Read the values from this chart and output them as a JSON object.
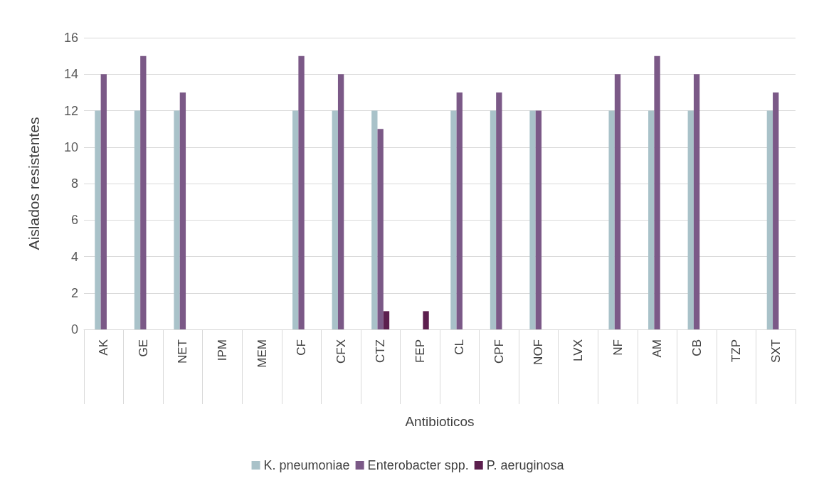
{
  "chart_data": {
    "type": "bar",
    "xlabel": "Antibioticos",
    "ylabel": "Aislados resistentes",
    "categories": [
      "AK",
      "GE",
      "NET",
      "IPM",
      "MEM",
      "CF",
      "CFX",
      "CTZ",
      "FEP",
      "CL",
      "CPF",
      "NOF",
      "LVX",
      "NF",
      "AM",
      "CB",
      "TZP",
      "SXT"
    ],
    "series": [
      {
        "name": "K. pneumoniae",
        "color": "#a9c2c9",
        "values": [
          12,
          12,
          12,
          0,
          0,
          12,
          12,
          12,
          0,
          12,
          12,
          12,
          0,
          12,
          12,
          12,
          0,
          12
        ]
      },
      {
        "name": "Enterobacter spp.",
        "color": "#7b5987",
        "values": [
          14,
          15,
          13,
          0,
          0,
          15,
          14,
          11,
          0,
          13,
          13,
          12,
          0,
          14,
          15,
          14,
          0,
          13
        ]
      },
      {
        "name": "P. aeruginosa",
        "color": "#5c1f4e",
        "values": [
          0,
          0,
          0,
          0,
          0,
          0,
          0,
          1,
          1,
          0,
          0,
          0,
          0,
          0,
          0,
          0,
          0,
          0
        ]
      }
    ],
    "ylim": [
      0,
      16
    ],
    "yticks": [
      0,
      2,
      4,
      6,
      8,
      10,
      12,
      14,
      16
    ],
    "grid": "y",
    "legend": "bottom"
  }
}
